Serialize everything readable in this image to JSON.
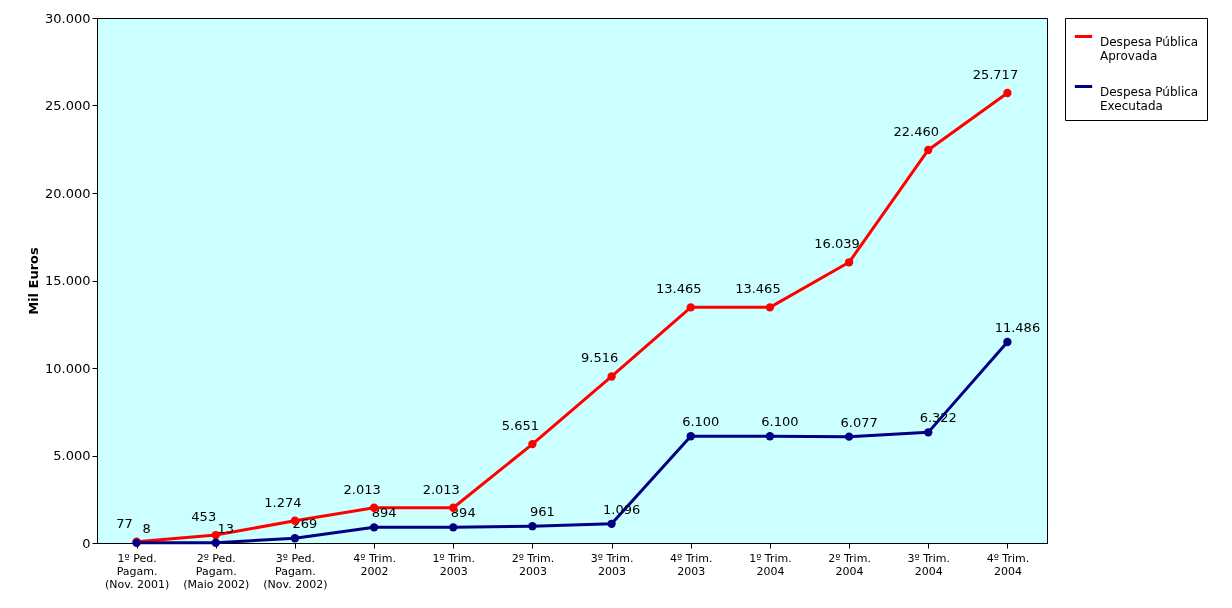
{
  "chart_data": {
    "type": "line",
    "ylabel": "Mil Euros",
    "categories": [
      "1º Ped.\nPagam.\n(Nov. 2001)",
      "2º Ped.\nPagam.\n(Maio 2002)",
      "3º Ped.\nPagam.\n(Nov. 2002)",
      "4º Trim.\n2002",
      "1º Trim.\n2003",
      "2º Trim.\n2003",
      "3º Trim.\n2003",
      "4º Trim.\n2003",
      "1º Trim.\n2004",
      "2º Trim.\n2004",
      "3º Trim.\n2004",
      "4º Trim.\n2004"
    ],
    "series": [
      {
        "name": "Despesa Pública Aprovada",
        "color": "#ff0000",
        "values": [
          77,
          453,
          1274,
          2013,
          2013,
          5651,
          9516,
          13465,
          13465,
          16039,
          22460,
          25717
        ],
        "value_labels": [
          "77",
          "453",
          "1.274",
          "2.013",
          "2.013",
          "5.651",
          "9.516",
          "13.465",
          "13.465",
          "16.039",
          "22.460",
          "25.717"
        ]
      },
      {
        "name": "Despesa Pública Executada",
        "color": "#000080",
        "values": [
          8,
          13,
          269,
          894,
          894,
          961,
          1096,
          6100,
          6100,
          6077,
          6322,
          11486
        ],
        "value_labels": [
          "8",
          "13",
          "269",
          "894",
          "894",
          "961",
          "1.096",
          "6.100",
          "6.100",
          "6.077",
          "6.322",
          "11.486"
        ]
      }
    ],
    "ylim": [
      0,
      30000
    ],
    "yticks": [
      0,
      {
        "value": 5000,
        "label": "5.000"
      },
      {
        "value": 10000,
        "label": "10.000"
      },
      {
        "value": 15000,
        "label": "15.000"
      },
      {
        "value": 20000,
        "label": "20.000"
      },
      {
        "value": 25000,
        "label": "25.000"
      },
      {
        "value": 30000,
        "label": "30.000"
      }
    ],
    "grid": false,
    "legend": "right",
    "marker": "circle",
    "line_style": "solid"
  }
}
